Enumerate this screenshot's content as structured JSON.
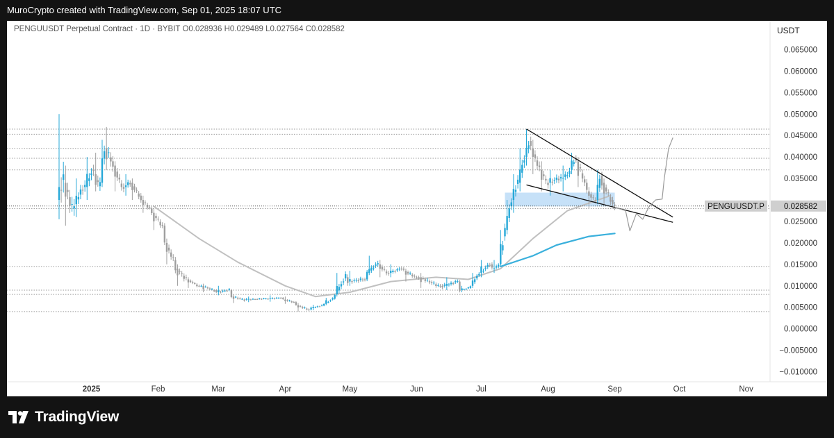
{
  "header": {
    "caption": "MuroCrypto created with TradingView.com, Sep 01, 2025 18:07 UTC"
  },
  "legend": {
    "symbol": "PENGUUSDT Perpetual Contract · 1D · BYBIT",
    "open_label": "O",
    "open": "0.028936",
    "high_label": "H",
    "high": "0.029489",
    "low_label": "L",
    "low": "0.027564",
    "close_label": "C",
    "close": "0.028582"
  },
  "price_axis": {
    "currency": "USDT",
    "ticks": [
      "0.065000",
      "0.060000",
      "0.055000",
      "0.050000",
      "0.045000",
      "0.040000",
      "0.035000",
      "0.030000",
      "0.025000",
      "0.020000",
      "0.015000",
      "0.010000",
      "0.005000",
      "0.000000",
      "−0.005000",
      "−0.010000"
    ]
  },
  "price_tag": {
    "symbol": "PENGUUSDT.P",
    "value": "0.028582"
  },
  "time_axis": {
    "labels": [
      "2025",
      "Feb",
      "Mar",
      "Apr",
      "May",
      "Jun",
      "Jul",
      "Aug",
      "Sep",
      "Oct",
      "Nov"
    ]
  },
  "footer": {
    "brand": "TradingView"
  },
  "colors": {
    "up": "#26a8d8",
    "down": "#9e9e9e",
    "ma_fast": "#c0c0c0",
    "ma_slow": "#3ab0dc",
    "zone": "#bcdcf7",
    "trendline": "#111111",
    "projection": "#9a9a9a",
    "hline": "#9a9a9a"
  },
  "chart_data": {
    "type": "candlestick",
    "title": "PENGUUSDT Perpetual Contract · 1D · BYBIT",
    "ylim": [
      -0.01,
      0.065
    ],
    "xlim": [
      "2024-12-17",
      "2025-11-05"
    ],
    "ohlc_points": [
      [
        "2024-12-17",
        0.03,
        0.05,
        0.0255,
        0.035
      ],
      [
        "2024-12-20",
        0.034,
        0.038,
        0.024,
        0.028
      ],
      [
        "2024-12-25",
        0.029,
        0.035,
        0.026,
        0.033
      ],
      [
        "2024-12-30",
        0.033,
        0.04,
        0.03,
        0.037
      ],
      [
        "2025-01-03",
        0.036,
        0.041,
        0.032,
        0.033
      ],
      [
        "2025-01-06",
        0.034,
        0.044,
        0.033,
        0.042
      ],
      [
        "2025-01-08",
        0.042,
        0.047,
        0.037,
        0.039
      ],
      [
        "2025-01-12",
        0.038,
        0.039,
        0.032,
        0.033
      ],
      [
        "2025-01-17",
        0.033,
        0.036,
        0.031,
        0.034
      ],
      [
        "2025-01-20",
        0.034,
        0.035,
        0.03,
        0.031
      ],
      [
        "2025-01-25",
        0.03,
        0.031,
        0.027,
        0.028
      ],
      [
        "2025-01-30",
        0.027,
        0.028,
        0.023,
        0.024
      ],
      [
        "2025-02-05",
        0.02,
        0.021,
        0.015,
        0.016
      ],
      [
        "2025-02-10",
        0.014,
        0.015,
        0.01,
        0.012
      ],
      [
        "2025-02-15",
        0.0115,
        0.012,
        0.0095,
        0.01
      ],
      [
        "2025-02-22",
        0.01,
        0.0105,
        0.0085,
        0.009
      ],
      [
        "2025-03-01",
        0.0085,
        0.01,
        0.0078,
        0.009
      ],
      [
        "2025-03-08",
        0.0075,
        0.008,
        0.006,
        0.0068
      ],
      [
        "2025-03-15",
        0.0068,
        0.0075,
        0.0062,
        0.007
      ],
      [
        "2025-03-25",
        0.007,
        0.0078,
        0.0063,
        0.0072
      ],
      [
        "2025-04-01",
        0.0068,
        0.0075,
        0.0058,
        0.0062
      ],
      [
        "2025-04-07",
        0.0055,
        0.006,
        0.004,
        0.0045
      ],
      [
        "2025-04-14",
        0.0048,
        0.0056,
        0.0043,
        0.0054
      ],
      [
        "2025-04-20",
        0.0058,
        0.0072,
        0.0055,
        0.007
      ],
      [
        "2025-04-25",
        0.008,
        0.013,
        0.0075,
        0.012
      ],
      [
        "2025-05-01",
        0.011,
        0.0135,
        0.01,
        0.0115
      ],
      [
        "2025-05-10",
        0.013,
        0.017,
        0.0125,
        0.015
      ],
      [
        "2025-05-15",
        0.015,
        0.016,
        0.012,
        0.013
      ],
      [
        "2025-05-20",
        0.013,
        0.015,
        0.012,
        0.014
      ],
      [
        "2025-05-27",
        0.0135,
        0.014,
        0.011,
        0.012
      ],
      [
        "2025-06-03",
        0.012,
        0.013,
        0.0095,
        0.01
      ],
      [
        "2025-06-15",
        0.01,
        0.012,
        0.009,
        0.011
      ],
      [
        "2025-06-22",
        0.009,
        0.01,
        0.0085,
        0.0095
      ],
      [
        "2025-06-27",
        0.01,
        0.013,
        0.0095,
        0.0125
      ],
      [
        "2025-07-01",
        0.013,
        0.016,
        0.012,
        0.015
      ],
      [
        "2025-07-07",
        0.014,
        0.016,
        0.013,
        0.0145
      ],
      [
        "2025-07-10",
        0.015,
        0.023,
        0.0145,
        0.022
      ],
      [
        "2025-07-13",
        0.023,
        0.03,
        0.022,
        0.029
      ],
      [
        "2025-07-16",
        0.03,
        0.036,
        0.027,
        0.034
      ],
      [
        "2025-07-19",
        0.034,
        0.042,
        0.032,
        0.039
      ],
      [
        "2025-07-22",
        0.04,
        0.0465,
        0.038,
        0.044
      ],
      [
        "2025-07-25",
        0.042,
        0.044,
        0.036,
        0.038
      ],
      [
        "2025-07-29",
        0.037,
        0.039,
        0.032,
        0.034
      ],
      [
        "2025-08-02",
        0.034,
        0.037,
        0.031,
        0.035
      ],
      [
        "2025-08-08",
        0.035,
        0.038,
        0.032,
        0.036
      ],
      [
        "2025-08-12",
        0.037,
        0.041,
        0.036,
        0.04
      ],
      [
        "2025-08-15",
        0.039,
        0.04,
        0.033,
        0.034
      ],
      [
        "2025-08-20",
        0.032,
        0.033,
        0.028,
        0.03
      ],
      [
        "2025-08-24",
        0.03,
        0.037,
        0.029,
        0.036
      ],
      [
        "2025-08-27",
        0.034,
        0.035,
        0.029,
        0.03
      ],
      [
        "2025-09-01",
        0.0289,
        0.0295,
        0.0276,
        0.0286
      ]
    ],
    "series": [
      {
        "name": "",
        "color": "#c0c0c0",
        "x": [
          "2025-01-30",
          "2025-02-20",
          "2025-03-10",
          "2025-04-01",
          "2025-04-15",
          "2025-05-01",
          "2025-05-20",
          "2025-06-10",
          "2025-06-25",
          "2025-07-10",
          "2025-07-25",
          "2025-08-10",
          "2025-08-30"
        ],
        "values": [
          0.0285,
          0.021,
          0.0155,
          0.01,
          0.0075,
          0.0085,
          0.011,
          0.012,
          0.0115,
          0.014,
          0.021,
          0.0275,
          0.031
        ]
      },
      {
        "name": "",
        "color": "#3ab0dc",
        "x": [
          "2025-07-10",
          "2025-07-25",
          "2025-08-05",
          "2025-08-20",
          "2025-09-01"
        ],
        "values": [
          0.0145,
          0.017,
          0.0195,
          0.0215,
          0.0222
        ]
      }
    ],
    "horizontal_levels": [
      0.0465,
      0.0453,
      0.042,
      0.0397,
      0.037,
      0.028,
      0.0145,
      0.009,
      0.008,
      0.004
    ],
    "support_zone": {
      "from": "2025-07-12",
      "to": "2025-09-01",
      "low": 0.0285,
      "high": 0.0317
    },
    "wedge": {
      "upper": [
        [
          "2025-07-22",
          0.0465
        ],
        [
          "2025-09-28",
          0.026
        ]
      ],
      "lower": [
        [
          "2025-07-22",
          0.0335
        ],
        [
          "2025-09-28",
          0.0248
        ]
      ]
    },
    "projection_path": [
      [
        "2025-09-01",
        0.0283
      ],
      [
        "2025-09-06",
        0.0275
      ],
      [
        "2025-09-08",
        0.0228
      ],
      [
        "2025-09-11",
        0.0268
      ],
      [
        "2025-09-14",
        0.0255
      ],
      [
        "2025-09-17",
        0.0285
      ],
      [
        "2025-09-20",
        0.03
      ],
      [
        "2025-09-23",
        0.0302
      ],
      [
        "2025-09-24",
        0.035
      ],
      [
        "2025-09-26",
        0.042
      ],
      [
        "2025-09-28",
        0.0445
      ]
    ],
    "last_price": 0.028582,
    "grid": false
  }
}
